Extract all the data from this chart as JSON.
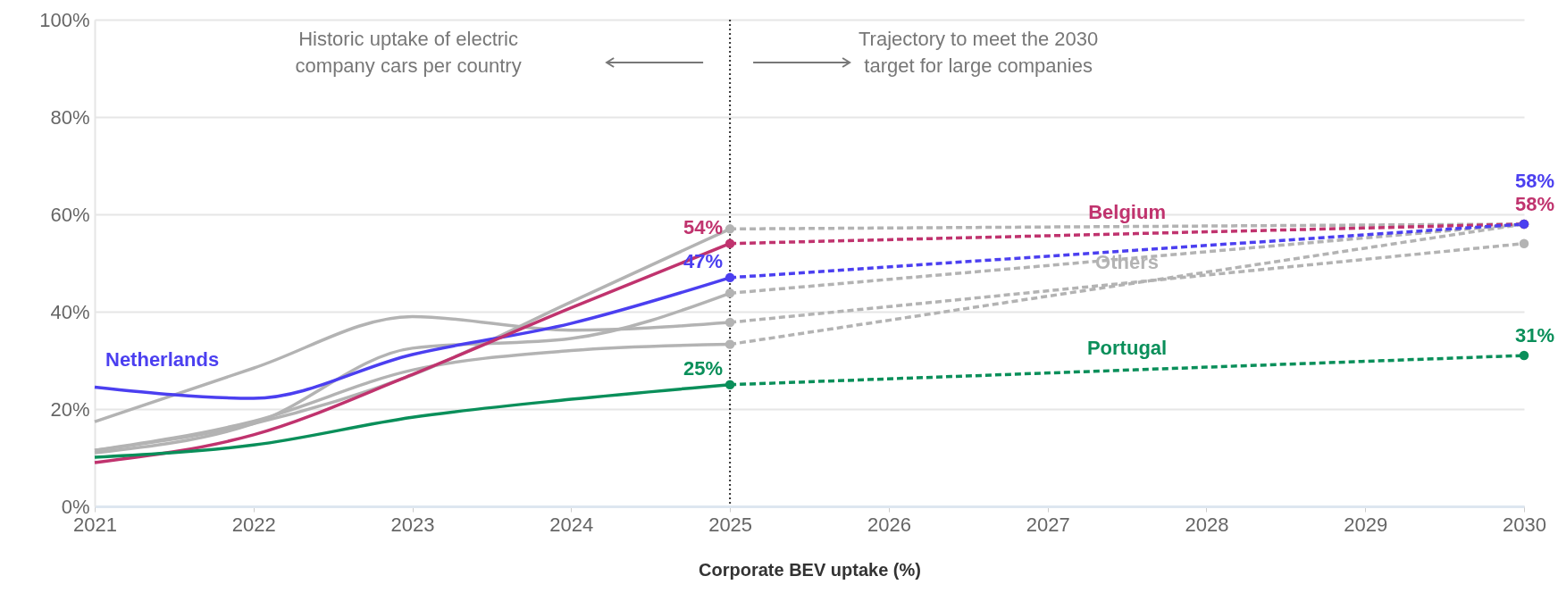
{
  "chart_data": {
    "type": "line",
    "xlabel": "Corporate BEV uptake (%)",
    "xlim": [
      2021,
      2030
    ],
    "xticks": [
      2021,
      2022,
      2023,
      2024,
      2025,
      2026,
      2027,
      2028,
      2029,
      2030
    ],
    "ylim": [
      0,
      100
    ],
    "yticks": [
      {
        "value": 0,
        "label": "0%"
      },
      {
        "value": 20,
        "label": "20%"
      },
      {
        "value": 40,
        "label": "40%"
      },
      {
        "value": 60,
        "label": "60%"
      },
      {
        "value": 80,
        "label": "80%"
      },
      {
        "value": 100,
        "label": "100%"
      }
    ],
    "grid": "y",
    "legend": false,
    "annotations": [
      "Historic uptake of electric\ncompany cars per country",
      "Trajectory to meet the 2030\ntarget for large companies"
    ],
    "ref_lines": [
      {
        "axis": "x",
        "value": 2025,
        "label": null,
        "color": "#333333",
        "line_style": "dotted"
      }
    ],
    "series": [
      {
        "color": "#b3b3b3",
        "line_style": "solid",
        "x": [
          2021,
          2022,
          2023,
          2024,
          2025
        ],
        "values": [
          17.4,
          28.4,
          39.0,
          36.2,
          37.8
        ]
      },
      {
        "color": "#b3b3b3",
        "line_style": "solid",
        "x": [
          2021,
          2022,
          2023,
          2024,
          2025
        ],
        "values": [
          11.5,
          17,
          27,
          42,
          57
        ]
      },
      {
        "color": "#b3b3b3",
        "line_style": "solid",
        "x": [
          2021,
          2022,
          2023,
          2024,
          2025
        ],
        "values": [
          11,
          17,
          32.5,
          34.5,
          43.8
        ]
      },
      {
        "color": "#b3b3b3",
        "line_style": "solid",
        "x": [
          2021,
          2022,
          2023,
          2024,
          2025
        ],
        "values": [
          11.5,
          17.5,
          28,
          32,
          33.3
        ]
      },
      {
        "name": "Netherlands",
        "color": "#4b3ff0",
        "line_style": "solid",
        "x": [
          2021,
          2022,
          2023,
          2024,
          2025
        ],
        "values": [
          24.5,
          22.2,
          31.2,
          37.6,
          47
        ]
      },
      {
        "color": "#c0336e",
        "line_style": "solid",
        "x": [
          2021,
          2022,
          2023,
          2024,
          2025
        ],
        "values": [
          9.0,
          14.7,
          27.1,
          40.8,
          54
        ]
      },
      {
        "color": "#0a8f5a",
        "line_style": "solid",
        "x": [
          2021,
          2022,
          2023,
          2024,
          2025
        ],
        "values": [
          10.1,
          12.6,
          18.3,
          22.0,
          25
        ]
      },
      {
        "color": "#b3b3b3",
        "line_style": "dashed",
        "marker": "circle",
        "x": [
          2025,
          2030
        ],
        "values": [
          37.8,
          54
        ]
      },
      {
        "color": "#b3b3b3",
        "line_style": "dashed",
        "marker": "circle",
        "x": [
          2025,
          2030
        ],
        "values": [
          57,
          58
        ]
      },
      {
        "color": "#b3b3b3",
        "line_style": "dashed",
        "marker": "circle",
        "x": [
          2025,
          2030
        ],
        "values": [
          43.8,
          58
        ]
      },
      {
        "name": "Others",
        "color": "#b3b3b3",
        "line_style": "dashed",
        "marker": "circle",
        "x": [
          2025,
          2030
        ],
        "values": [
          33.3,
          58
        ]
      },
      {
        "name": "Portugal",
        "color": "#0a8f5a",
        "line_style": "dashed",
        "marker": "circle",
        "x": [
          2025,
          2030
        ],
        "values": [
          25,
          31
        ],
        "value_labels": [
          "25%",
          "31%"
        ]
      },
      {
        "name": "Belgium",
        "color": "#c0336e",
        "line_style": "dashed",
        "marker": "circle",
        "x": [
          2025,
          2030
        ],
        "values": [
          54,
          58
        ],
        "value_labels": [
          "54%",
          "58%"
        ]
      },
      {
        "color": "#4b3ff0",
        "line_style": "dashed",
        "marker": "circle",
        "x": [
          2025,
          2030
        ],
        "values": [
          47,
          58
        ],
        "value_labels": [
          "47%",
          "58%"
        ]
      }
    ]
  }
}
